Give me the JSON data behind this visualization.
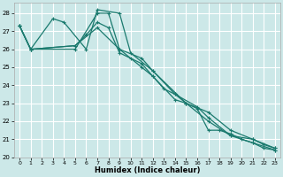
{
  "title": "",
  "xlabel": "Humidex (Indice chaleur)",
  "bg_color": "#cce8e8",
  "grid_color": "#ffffff",
  "line_color": "#1a7a6e",
  "xlim": [
    -0.5,
    23.5
  ],
  "ylim": [
    20,
    28.6
  ],
  "yticks": [
    20,
    21,
    22,
    23,
    24,
    25,
    26,
    27,
    28
  ],
  "xticks": [
    0,
    1,
    2,
    3,
    4,
    5,
    6,
    7,
    8,
    9,
    10,
    11,
    12,
    13,
    14,
    15,
    16,
    17,
    18,
    19,
    20,
    21,
    22,
    23
  ],
  "lines": [
    {
      "x": [
        0,
        1,
        3,
        4,
        6,
        7,
        9,
        10,
        12,
        15,
        17,
        19,
        21,
        23
      ],
      "y": [
        27.3,
        26.0,
        27.7,
        27.5,
        26.0,
        28.2,
        28.0,
        25.8,
        24.8,
        23.0,
        22.5,
        21.5,
        21.0,
        20.5
      ]
    },
    {
      "x": [
        0,
        1,
        5,
        7,
        8,
        9,
        11,
        12,
        14,
        15,
        17,
        19,
        21,
        22,
        23
      ],
      "y": [
        27.3,
        26.0,
        26.0,
        28.0,
        28.0,
        26.0,
        25.0,
        24.5,
        23.2,
        23.0,
        22.0,
        21.2,
        21.0,
        20.7,
        20.5
      ]
    },
    {
      "x": [
        0,
        1,
        5,
        7,
        9,
        11,
        12,
        14,
        16,
        17,
        19,
        21,
        23
      ],
      "y": [
        27.3,
        26.0,
        26.2,
        27.2,
        26.0,
        25.5,
        24.8,
        23.5,
        22.8,
        22.2,
        21.2,
        20.8,
        20.4
      ]
    },
    {
      "x": [
        0,
        1,
        5,
        6,
        7,
        8,
        9,
        10,
        11,
        12,
        13,
        14,
        15,
        16,
        17,
        18,
        19,
        20,
        21,
        22,
        23
      ],
      "y": [
        27.3,
        26.0,
        26.2,
        26.8,
        27.5,
        27.2,
        25.8,
        25.5,
        25.2,
        24.5,
        23.8,
        23.5,
        23.0,
        22.7,
        21.5,
        21.5,
        21.3,
        21.0,
        20.8,
        20.5,
        20.4
      ]
    }
  ]
}
